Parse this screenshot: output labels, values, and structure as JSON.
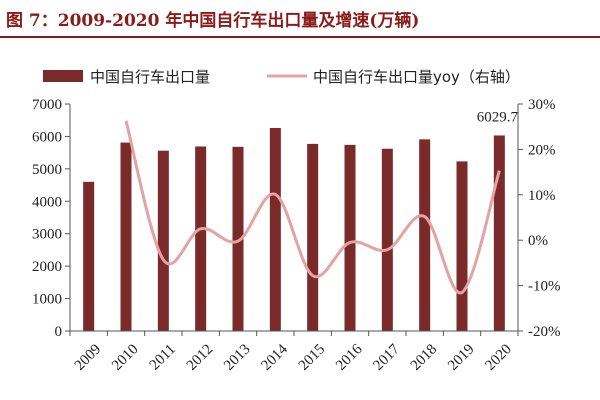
{
  "header": {
    "title": "图 7：2009-2020 年中国自行车出口量及增速(万辆)"
  },
  "colors": {
    "bar": "#7b2a2a",
    "line": "#e3a3a3",
    "title": "#8b1a1a",
    "axis": "#555555"
  },
  "chart_data": {
    "type": "bar",
    "title": "图 7：2009-2020 年中国自行车出口量及增速(万辆)",
    "categories": [
      "2009",
      "2010",
      "2011",
      "2012",
      "2013",
      "2014",
      "2015",
      "2016",
      "2017",
      "2018",
      "2019",
      "2020"
    ],
    "series": [
      {
        "name": "中国自行车出口量",
        "type": "bar",
        "axis": "left",
        "values": [
          4600,
          5810,
          5560,
          5690,
          5680,
          6260,
          5770,
          5740,
          5620,
          5910,
          5230,
          6029.7
        ]
      },
      {
        "name": "中国自行车出口量yoy（右轴）",
        "type": "line",
        "axis": "right",
        "smooth": true,
        "values": [
          null,
          26.3,
          -4.3,
          2.5,
          -0.2,
          10.1,
          -7.8,
          -0.5,
          -2.1,
          5.2,
          -11.5,
          15.3
        ]
      }
    ],
    "left_axis": {
      "min": 0,
      "max": 7000,
      "ticks": [
        "0",
        "1000",
        "2000",
        "3000",
        "4000",
        "5000",
        "6000",
        "7000"
      ]
    },
    "right_axis": {
      "min": -20,
      "max": 30,
      "ticks": [
        "-20%",
        "-10%",
        "0%",
        "10%",
        "20%",
        "30%"
      ]
    },
    "annotations": [
      {
        "category": "2020",
        "series": "中国自行车出口量",
        "text": "6029.7"
      }
    ],
    "legend": {
      "placement": "top"
    },
    "grid": false
  }
}
